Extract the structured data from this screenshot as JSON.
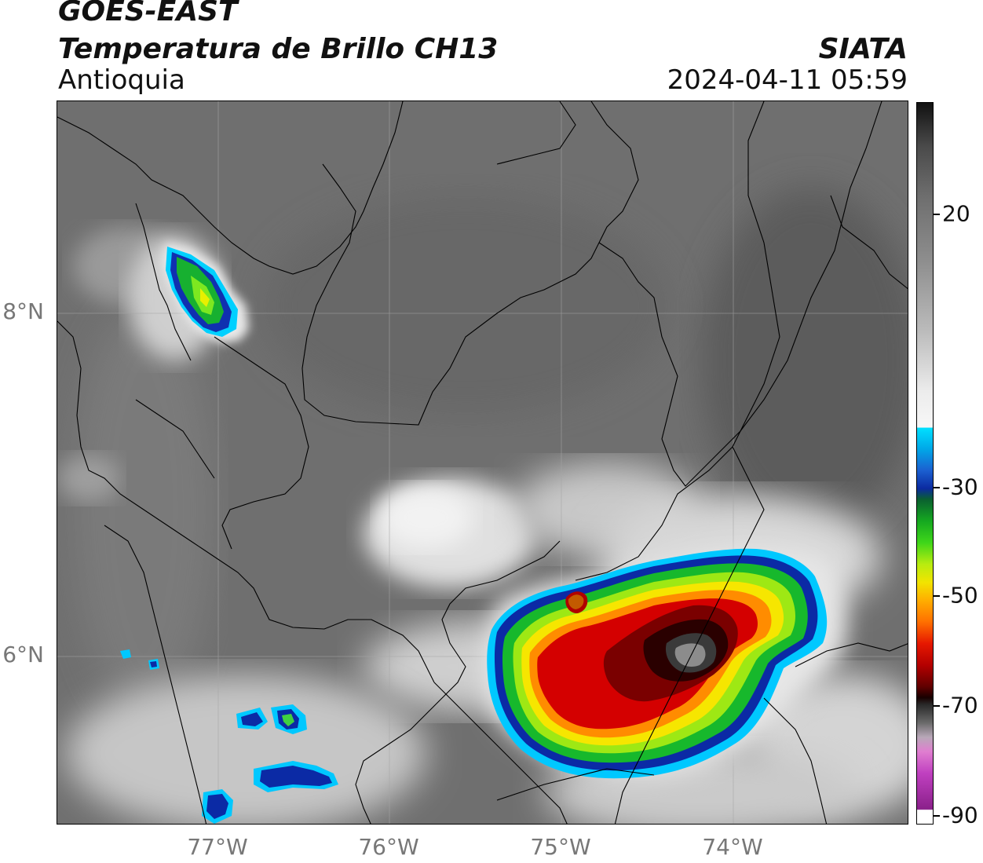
{
  "header": {
    "title": "GOES-EAST",
    "subtitle": "Temperatura de Brillo CH13",
    "region": "Antioquia",
    "organization": "SIATA",
    "timestamp": "2024-04-11 05:59"
  },
  "map": {
    "latitude_labels": [
      "8°N",
      "6°N"
    ],
    "longitude_labels": [
      "77°W",
      "76°W",
      "75°W",
      "74°W"
    ]
  },
  "colorbar": {
    "tick_labels": [
      "20",
      "-30",
      "-50",
      "-70",
      "-90"
    ],
    "colors": {
      "warm_top": "#111111",
      "warm_mid": "#7a7a7a",
      "neutral": "#f4f4f4",
      "cyan": "#00d7ff",
      "blue": "#0a2aa0",
      "green": "#19c21e",
      "yellow": "#e8f000",
      "orange": "#ff8a00",
      "red": "#d00000",
      "dark_red": "#300000",
      "magenta": "#9e1f9e"
    }
  }
}
